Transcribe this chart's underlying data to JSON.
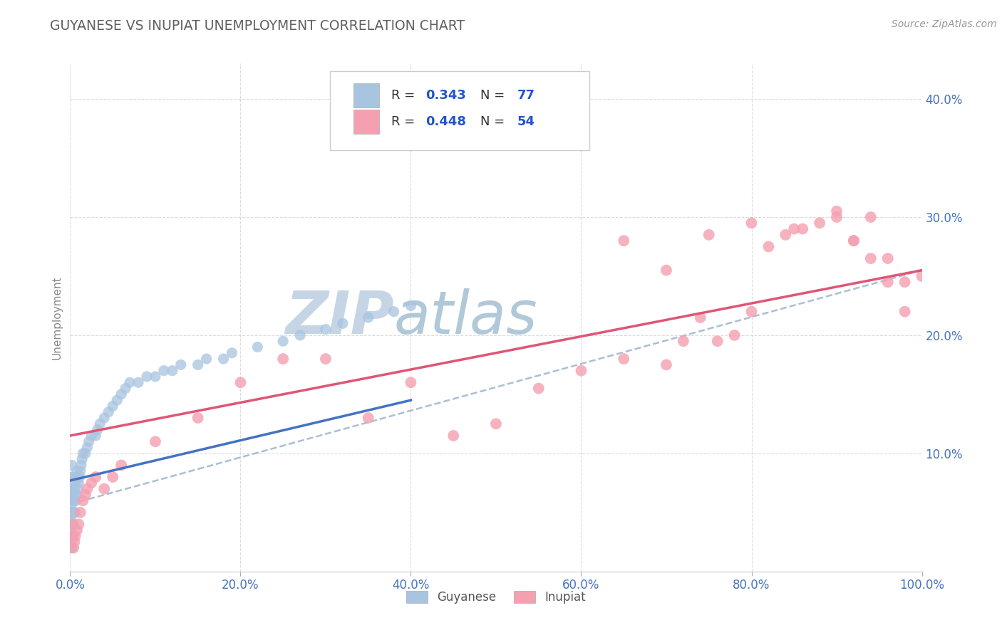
{
  "title": "GUYANESE VS INUPIAT UNEMPLOYMENT CORRELATION CHART",
  "source": "Source: ZipAtlas.com",
  "ylabel": "Unemployment",
  "xlim": [
    0,
    1.0
  ],
  "ylim": [
    0,
    0.43
  ],
  "xticks": [
    0.0,
    0.2,
    0.4,
    0.6,
    0.8,
    1.0
  ],
  "xticklabels": [
    "0.0%",
    "20.0%",
    "40.0%",
    "60.0%",
    "80.0%",
    "100.0%"
  ],
  "yticks": [
    0.0,
    0.1,
    0.2,
    0.3,
    0.4
  ],
  "yticklabels": [
    "",
    "10.0%",
    "20.0%",
    "30.0%",
    "40.0%"
  ],
  "guyanese_color": "#a8c4e0",
  "inupiat_color": "#f4a0b0",
  "trend_guyanese_color": "#4472c4",
  "trend_inupiat_color": "#e05575",
  "trend_dash_color": "#a0b8d0",
  "watermark_zip": "ZIP",
  "watermark_atlas": "atlas",
  "watermark_color_zip": "#c5d5e5",
  "watermark_color_atlas": "#b0c8d8",
  "background_color": "#ffffff",
  "grid_color": "#cccccc",
  "title_color": "#606060",
  "r_n_color": "#2255cc",
  "label_color": "#888888",
  "guyanese_x": [
    0.001,
    0.001,
    0.001,
    0.001,
    0.001,
    0.001,
    0.001,
    0.001,
    0.001,
    0.001,
    0.002,
    0.002,
    0.002,
    0.002,
    0.002,
    0.002,
    0.002,
    0.002,
    0.003,
    0.003,
    0.003,
    0.003,
    0.003,
    0.003,
    0.004,
    0.004,
    0.004,
    0.004,
    0.005,
    0.005,
    0.005,
    0.006,
    0.006,
    0.006,
    0.007,
    0.007,
    0.008,
    0.008,
    0.009,
    0.01,
    0.011,
    0.012,
    0.013,
    0.014,
    0.015,
    0.018,
    0.02,
    0.022,
    0.025,
    0.03,
    0.032,
    0.035,
    0.04,
    0.045,
    0.05,
    0.055,
    0.06,
    0.065,
    0.07,
    0.08,
    0.09,
    0.1,
    0.11,
    0.12,
    0.13,
    0.15,
    0.16,
    0.18,
    0.19,
    0.22,
    0.25,
    0.27,
    0.3,
    0.32,
    0.35,
    0.38,
    0.4
  ],
  "guyanese_y": [
    0.02,
    0.025,
    0.03,
    0.035,
    0.04,
    0.045,
    0.05,
    0.055,
    0.06,
    0.065,
    0.02,
    0.03,
    0.04,
    0.05,
    0.06,
    0.07,
    0.08,
    0.09,
    0.03,
    0.04,
    0.05,
    0.06,
    0.07,
    0.08,
    0.04,
    0.05,
    0.06,
    0.07,
    0.05,
    0.06,
    0.07,
    0.05,
    0.065,
    0.075,
    0.06,
    0.08,
    0.065,
    0.085,
    0.07,
    0.075,
    0.08,
    0.085,
    0.09,
    0.095,
    0.1,
    0.1,
    0.105,
    0.11,
    0.115,
    0.115,
    0.12,
    0.125,
    0.13,
    0.135,
    0.14,
    0.145,
    0.15,
    0.155,
    0.16,
    0.16,
    0.165,
    0.165,
    0.17,
    0.17,
    0.175,
    0.175,
    0.18,
    0.18,
    0.185,
    0.19,
    0.195,
    0.2,
    0.205,
    0.21,
    0.215,
    0.22,
    0.225
  ],
  "inupiat_x": [
    0.002,
    0.003,
    0.004,
    0.005,
    0.006,
    0.008,
    0.01,
    0.012,
    0.015,
    0.018,
    0.02,
    0.025,
    0.03,
    0.04,
    0.05,
    0.06,
    0.1,
    0.15,
    0.2,
    0.25,
    0.3,
    0.35,
    0.4,
    0.45,
    0.5,
    0.55,
    0.6,
    0.65,
    0.7,
    0.72,
    0.74,
    0.76,
    0.78,
    0.8,
    0.82,
    0.84,
    0.86,
    0.88,
    0.9,
    0.92,
    0.94,
    0.96,
    0.98,
    1.0,
    0.65,
    0.7,
    0.75,
    0.8,
    0.85,
    0.9,
    0.92,
    0.94,
    0.96,
    0.98
  ],
  "inupiat_y": [
    0.04,
    0.03,
    0.02,
    0.025,
    0.03,
    0.035,
    0.04,
    0.05,
    0.06,
    0.065,
    0.07,
    0.075,
    0.08,
    0.07,
    0.08,
    0.09,
    0.11,
    0.13,
    0.16,
    0.18,
    0.18,
    0.13,
    0.16,
    0.115,
    0.125,
    0.155,
    0.17,
    0.18,
    0.175,
    0.195,
    0.215,
    0.195,
    0.2,
    0.22,
    0.275,
    0.285,
    0.29,
    0.295,
    0.305,
    0.28,
    0.3,
    0.265,
    0.245,
    0.25,
    0.28,
    0.255,
    0.285,
    0.295,
    0.29,
    0.3,
    0.28,
    0.265,
    0.245,
    0.22
  ],
  "guyanese_trend_x0": 0.0,
  "guyanese_trend_y0": 0.077,
  "guyanese_trend_x1": 0.4,
  "guyanese_trend_y1": 0.145,
  "inupiat_trend_x0": 0.0,
  "inupiat_trend_y0": 0.115,
  "inupiat_trend_x1": 1.0,
  "inupiat_trend_y1": 0.255,
  "dash_trend_x0": 0.0,
  "dash_trend_y0": 0.057,
  "dash_trend_x1": 1.0,
  "dash_trend_y1": 0.255
}
